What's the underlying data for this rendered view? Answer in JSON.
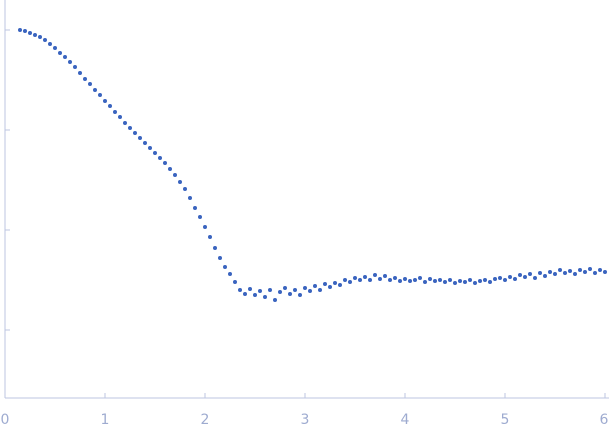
{
  "chart_data": {
    "type": "scatter",
    "x": [
      0.15,
      0.2,
      0.25,
      0.3,
      0.35,
      0.4,
      0.45,
      0.5,
      0.55,
      0.6,
      0.65,
      0.7,
      0.75,
      0.8,
      0.85,
      0.9,
      0.95,
      1.0,
      1.05,
      1.1,
      1.15,
      1.2,
      1.25,
      1.3,
      1.35,
      1.4,
      1.45,
      1.5,
      1.55,
      1.6,
      1.65,
      1.7,
      1.75,
      1.8,
      1.85,
      1.9,
      1.95,
      2.0,
      2.05,
      2.1,
      2.15,
      2.2,
      2.25,
      2.3,
      2.35,
      2.4,
      2.45,
      2.5,
      2.55,
      2.6,
      2.65,
      2.7,
      2.75,
      2.8,
      2.85,
      2.9,
      2.95,
      3.0,
      3.05,
      3.1,
      3.15,
      3.2,
      3.25,
      3.3,
      3.35,
      3.4,
      3.45,
      3.5,
      3.55,
      3.6,
      3.65,
      3.7,
      3.75,
      3.8,
      3.85,
      3.9,
      3.95,
      4.0,
      4.05,
      4.1,
      4.15,
      4.2,
      4.25,
      4.3,
      4.35,
      4.4,
      4.45,
      4.5,
      4.55,
      4.6,
      4.65,
      4.7,
      4.75,
      4.8,
      4.85,
      4.9,
      4.95,
      5.0,
      5.05,
      5.1,
      5.15,
      5.2,
      5.25,
      5.3,
      5.35,
      5.4,
      5.45,
      5.5,
      5.55,
      5.6,
      5.65,
      5.7,
      5.75,
      5.8,
      5.85,
      5.9,
      5.95,
      6.0
    ],
    "series": [
      {
        "color": "#3a64bf",
        "values": [
          3.0,
          2.99,
          2.97,
          2.95,
          2.93,
          2.9,
          2.86,
          2.82,
          2.77,
          2.73,
          2.68,
          2.63,
          2.57,
          2.51,
          2.46,
          2.4,
          2.35,
          2.29,
          2.24,
          2.18,
          2.13,
          2.07,
          2.02,
          1.97,
          1.92,
          1.87,
          1.82,
          1.77,
          1.72,
          1.67,
          1.61,
          1.55,
          1.48,
          1.41,
          1.32,
          1.22,
          1.13,
          1.03,
          0.93,
          0.82,
          0.72,
          0.63,
          0.56,
          0.48,
          0.4,
          0.36,
          0.41,
          0.35,
          0.39,
          0.33,
          0.4,
          0.3,
          0.38,
          0.42,
          0.36,
          0.4,
          0.35,
          0.42,
          0.39,
          0.44,
          0.4,
          0.46,
          0.43,
          0.47,
          0.45,
          0.5,
          0.48,
          0.52,
          0.5,
          0.53,
          0.5,
          0.55,
          0.51,
          0.54,
          0.5,
          0.52,
          0.49,
          0.51,
          0.49,
          0.5,
          0.52,
          0.48,
          0.51,
          0.49,
          0.5,
          0.48,
          0.5,
          0.47,
          0.49,
          0.48,
          0.5,
          0.47,
          0.49,
          0.5,
          0.48,
          0.51,
          0.52,
          0.5,
          0.53,
          0.51,
          0.55,
          0.53,
          0.56,
          0.52,
          0.57,
          0.54,
          0.58,
          0.56,
          0.6,
          0.57,
          0.59,
          0.56,
          0.6,
          0.58,
          0.61,
          0.57,
          0.6,
          0.58
        ]
      }
    ],
    "xlim": [
      0,
      6.04
    ],
    "xticks": [
      0,
      1,
      2,
      3,
      4,
      5,
      6
    ],
    "ylim": [
      -0.68,
      3.3
    ],
    "yticks": [
      0,
      1,
      2,
      3
    ]
  }
}
